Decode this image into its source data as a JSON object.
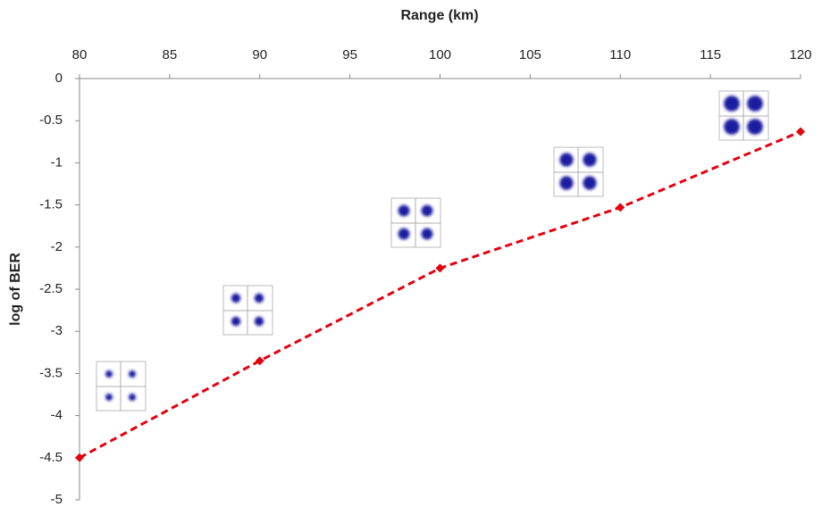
{
  "chart_data": {
    "type": "line",
    "x_label": "Range (km)",
    "y_label": "log of BER",
    "x": [
      80,
      90,
      100,
      110,
      120
    ],
    "series": [
      {
        "name": "log of BER",
        "color": "#e3000f",
        "values": [
          -4.5,
          -3.35,
          -2.25,
          -1.53,
          -0.63
        ]
      }
    ],
    "xlim": [
      80,
      120
    ],
    "xticks": [
      80,
      85,
      90,
      95,
      100,
      105,
      110,
      115,
      120
    ],
    "ylim": [
      -5,
      0
    ],
    "yticks": [
      0,
      -0.5,
      -1,
      -1.5,
      -2,
      -2.5,
      -3,
      -3.5,
      -4,
      -4.5,
      -5
    ],
    "x_axis_position": "top",
    "line_style": "dashed",
    "marker": "diamond"
  }
}
